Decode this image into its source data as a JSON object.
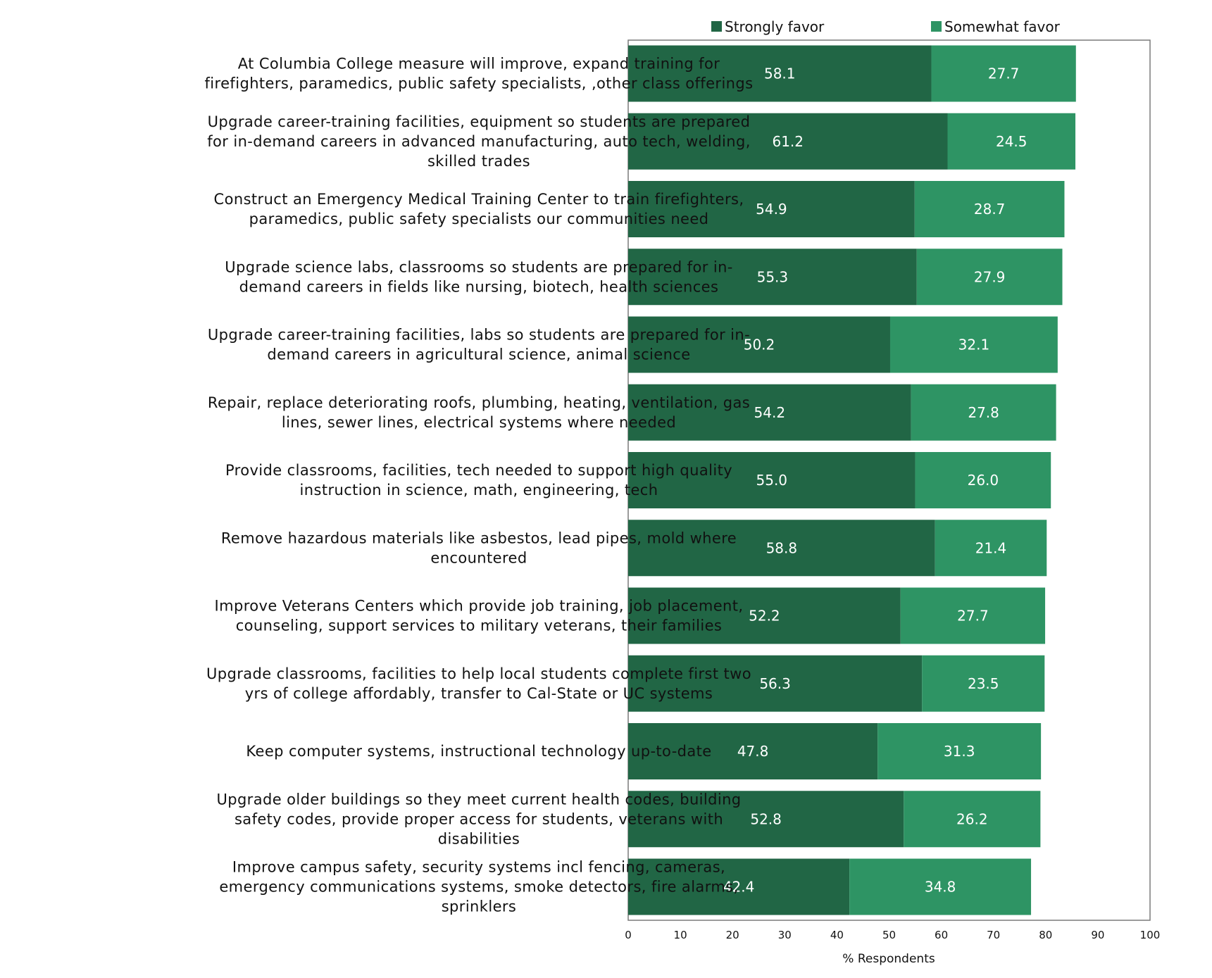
{
  "chart_data": {
    "type": "bar",
    "orientation": "horizontal",
    "stacked": true,
    "categories": [
      [
        "At Columbia College measure will improve, expand training for",
        "firefighters, paramedics, public safety specialists, ,other class offerings"
      ],
      [
        "Upgrade career-training facilities, equipment so students are prepared",
        "for in-demand careers in advanced manufacturing, auto tech, welding,",
        "skilled trades"
      ],
      [
        "Construct an Emergency Medical Training Center to train firefighters,",
        "paramedics, public safety specialists our communities need"
      ],
      [
        "Upgrade science labs, classrooms so students are prepared for in-",
        "demand careers in fields like nursing, biotech, health sciences"
      ],
      [
        "Upgrade career-training facilities, labs so students are prepared for in-",
        "demand careers in agricultural science, animal science"
      ],
      [
        "Repair, replace deteriorating roofs, plumbing, heating, ventilation, gas",
        "lines, sewer lines, electrical systems where needed"
      ],
      [
        "Provide classrooms, facilities, tech needed to support high quality",
        "instruction in science, math, engineering, tech"
      ],
      [
        "Remove hazardous materials like asbestos, lead pipes, mold where",
        "encountered"
      ],
      [
        "Improve Veterans Centers which provide job training, job placement,",
        "counseling, support services to military veterans, their families"
      ],
      [
        "Upgrade classrooms, facilities to help local students complete first two",
        "yrs of college affordably, transfer to Cal-State or UC systems"
      ],
      [
        "Keep computer systems, instructional technology up-to-date"
      ],
      [
        "Upgrade older buildings so they meet current health codes, building",
        "safety codes, provide proper access for students, veterans with",
        "disabilities"
      ],
      [
        "Improve campus safety, security systems incl fencing, cameras,",
        "emergency communications systems, smoke detectors, fire alarms,",
        "sprinklers"
      ]
    ],
    "series": [
      {
        "name": "Strongly favor",
        "color": "#216645",
        "values": [
          58.1,
          61.2,
          54.9,
          55.3,
          50.2,
          54.2,
          55.0,
          58.8,
          52.2,
          56.3,
          47.8,
          52.8,
          42.4
        ],
        "labels": [
          "58.1",
          "61.2",
          "54.9",
          "55.3",
          "50.2",
          "54.2",
          "55.0",
          "58.8",
          "52.2",
          "56.3",
          "47.8",
          "52.8",
          "42.4"
        ]
      },
      {
        "name": "Somewhat favor",
        "color": "#2e9464",
        "values": [
          27.7,
          24.5,
          28.7,
          27.9,
          32.1,
          27.8,
          26.0,
          21.4,
          27.7,
          23.5,
          31.3,
          26.2,
          34.8
        ],
        "labels": [
          "27.7",
          "24.5",
          "28.7",
          "27.9",
          "32.1",
          "27.8",
          "26.0",
          "21.4",
          "27.7",
          "23.5",
          "31.3",
          "26.2",
          "34.8"
        ]
      }
    ],
    "xlabel": "% Respondents",
    "xlim": [
      0,
      100
    ],
    "xticks": [
      "0",
      "10",
      "20",
      "30",
      "40",
      "50",
      "60",
      "70",
      "80",
      "90",
      "100"
    ],
    "legend_position": "top",
    "grid": false
  }
}
